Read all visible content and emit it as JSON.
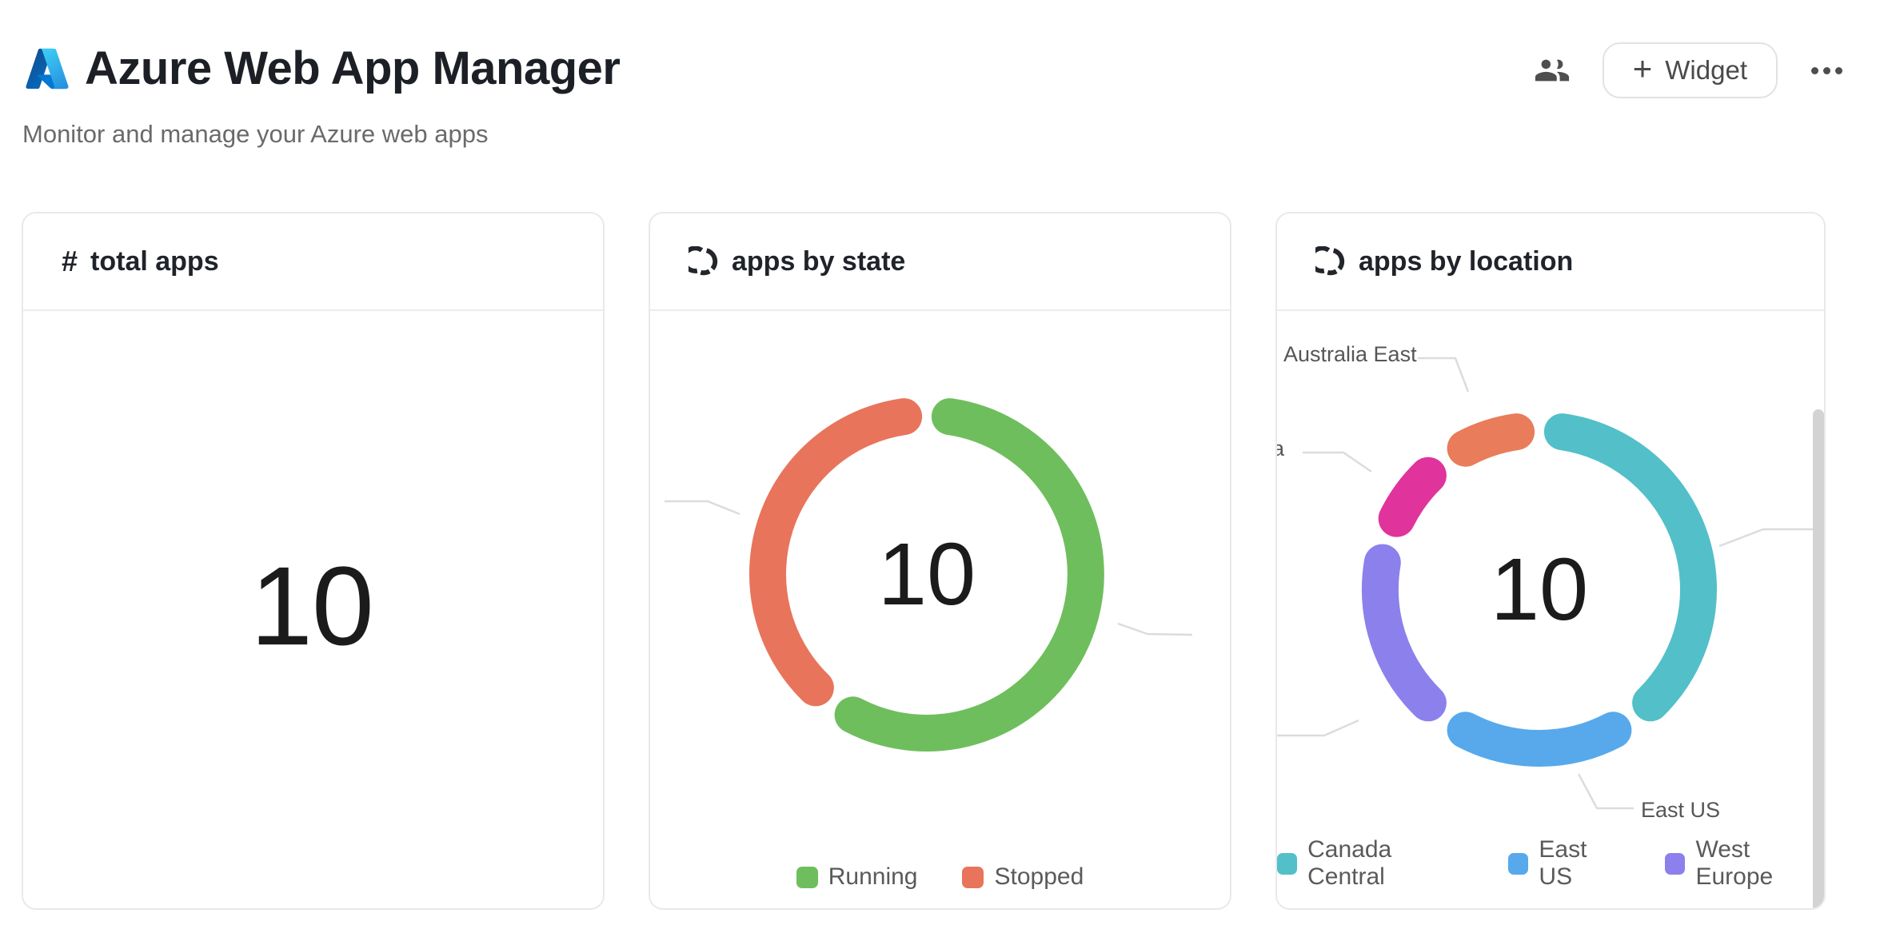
{
  "header": {
    "title": "Azure Web App Manager",
    "subtitle": "Monitor and manage your Azure web apps",
    "actions": {
      "plus_glyph": "+",
      "widget_label": "Widget"
    }
  },
  "cards": [
    {
      "title": "total apps",
      "icon": "hash-icon",
      "icon_glyph": "#",
      "value": "10"
    },
    {
      "title": "apps by state",
      "icon": "donut-chart-icon"
    },
    {
      "title": "apps by location",
      "icon": "donut-chart-icon"
    }
  ],
  "chart_data": [
    {
      "type": "pie",
      "subtype": "donut",
      "title": "apps by state",
      "center_label": "10",
      "total": 10,
      "legend_position": "bottom",
      "series": [
        {
          "name": "Running",
          "value": 6,
          "color": "#6FBE5D"
        },
        {
          "name": "Stopped",
          "value": 4,
          "color": "#E8745C"
        }
      ]
    },
    {
      "type": "pie",
      "subtype": "donut",
      "title": "apps by location",
      "center_label": "10",
      "total": 10,
      "legend_position": "bottom",
      "series": [
        {
          "name": "Canada Central",
          "value": 4,
          "color": "#53BFC9"
        },
        {
          "name": "East US",
          "value": 2,
          "color": "#57A9EB"
        },
        {
          "name": "West Europe",
          "value": 2,
          "color": "#8B80EC"
        },
        {
          "name": "a",
          "value": 1,
          "color": "#E0339C",
          "label_clipped": true
        },
        {
          "name": "Australia East",
          "value": 1,
          "color": "#E87C5B"
        }
      ],
      "visible_outside_labels": [
        "Australia East",
        "a",
        "East US"
      ]
    }
  ]
}
